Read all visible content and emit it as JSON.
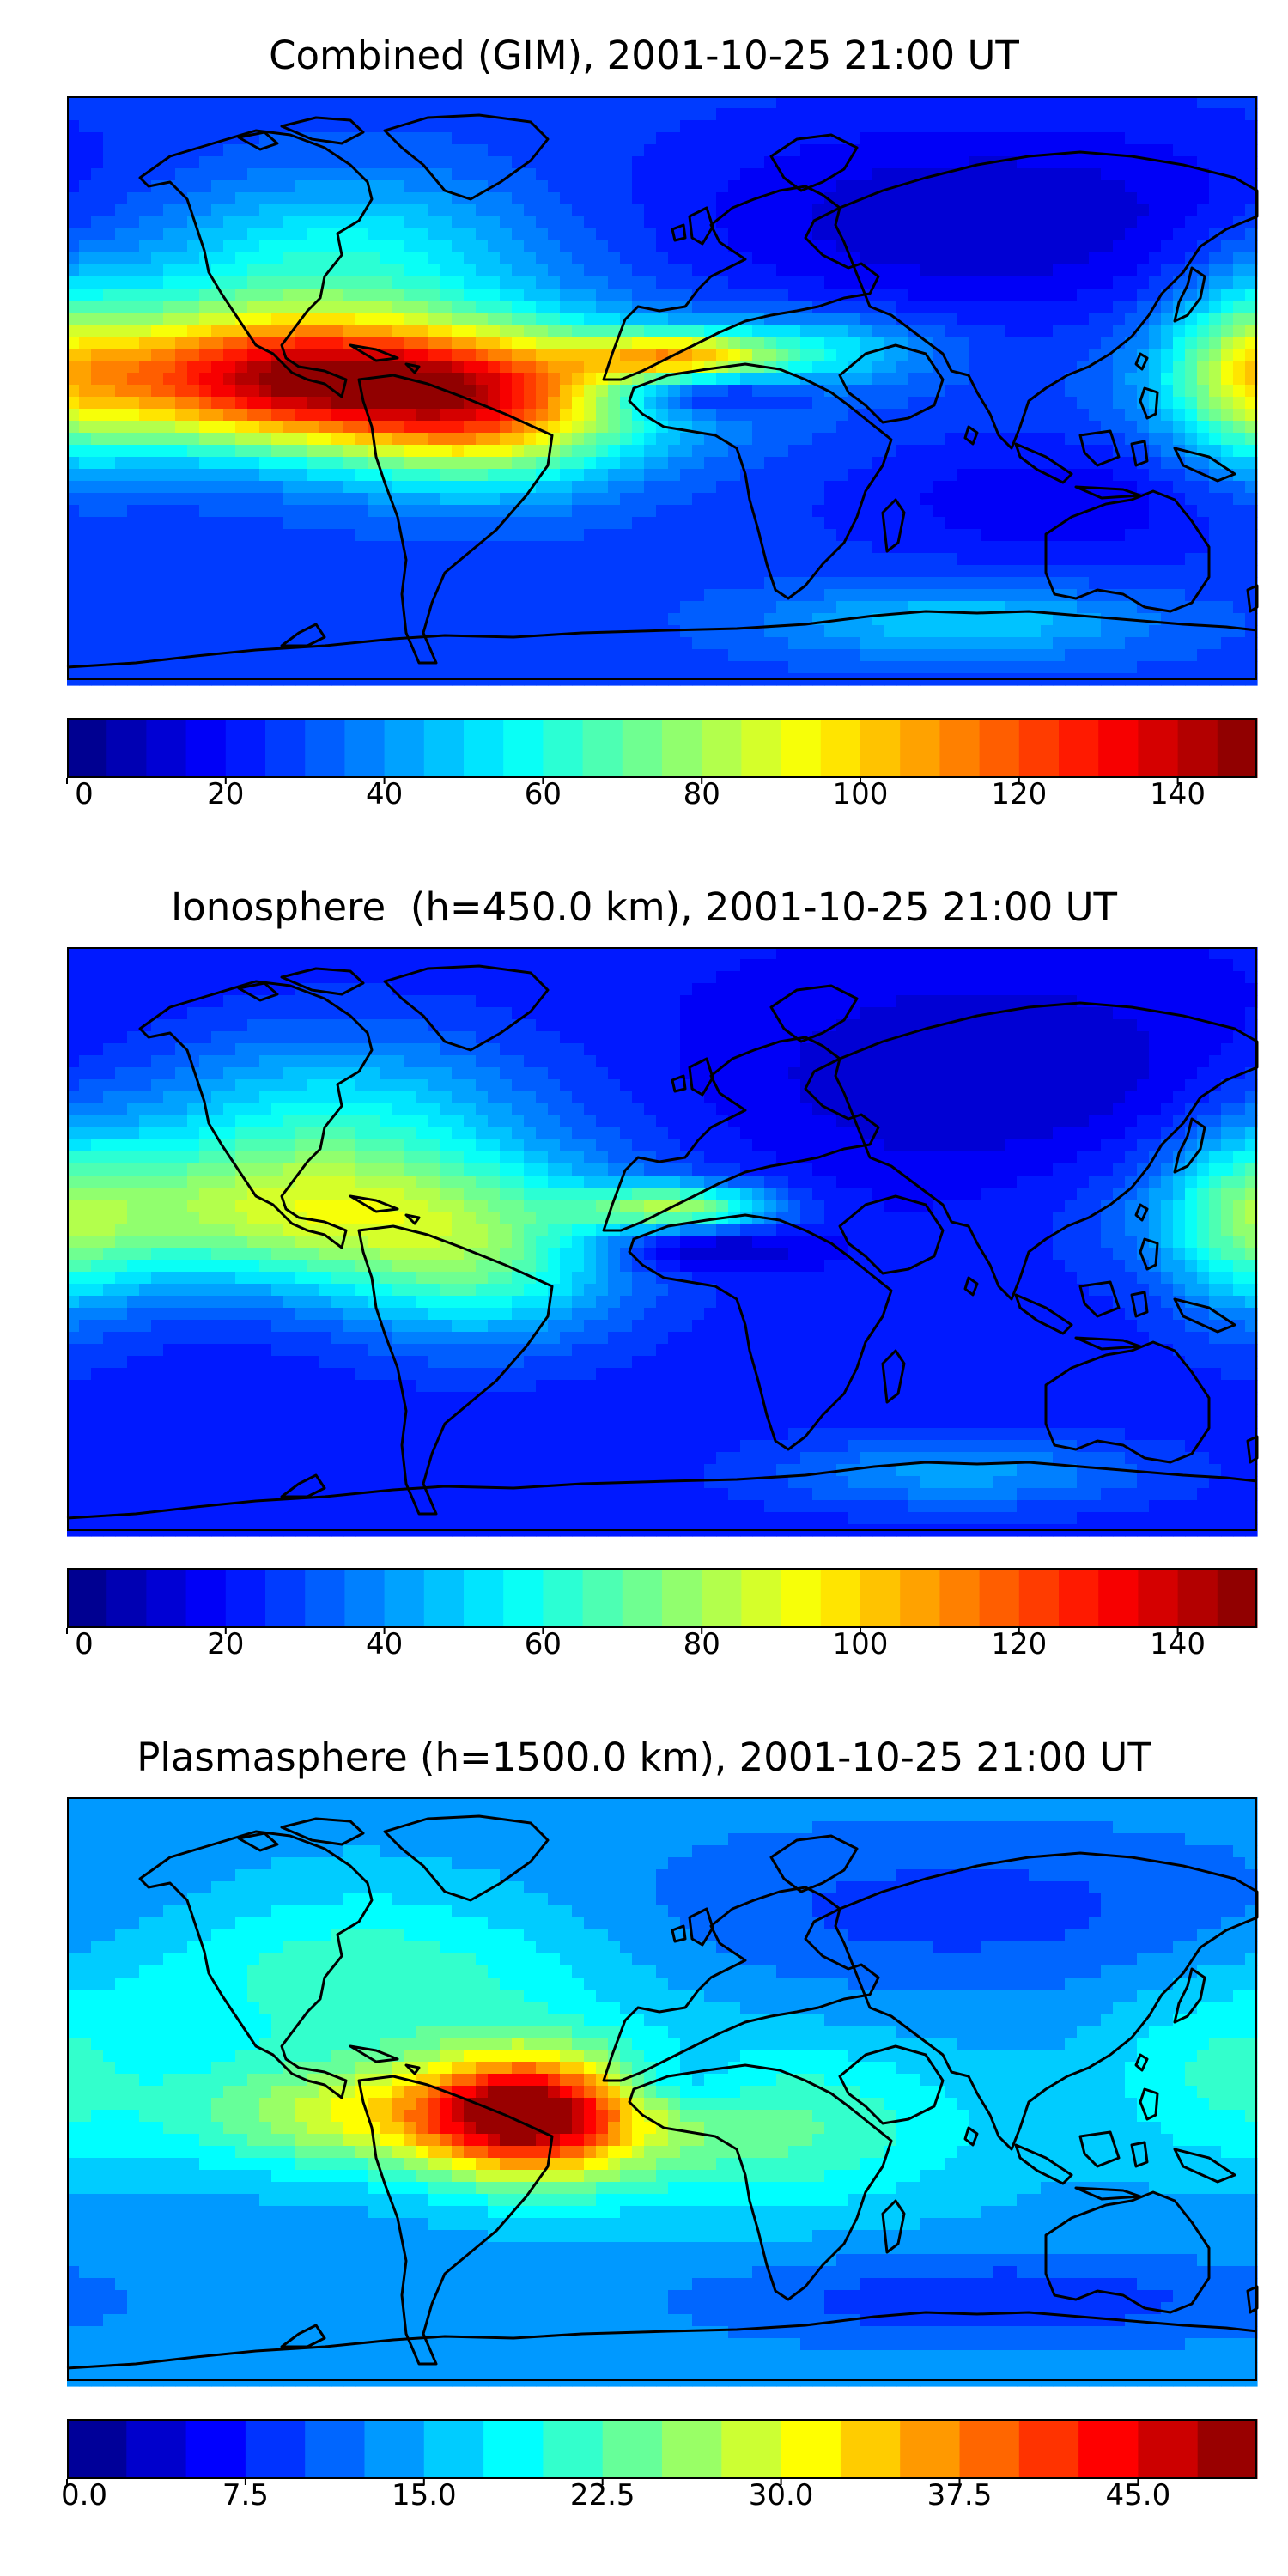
{
  "panels": [
    {
      "title": "Combined (GIM), 2001-10-25 21:00 UT",
      "colorbar": {
        "min": 0,
        "max": 150,
        "levels": 30,
        "ticks": [
          0,
          20,
          40,
          60,
          80,
          100,
          120,
          140
        ],
        "tick_labels": [
          "0",
          "20",
          "40",
          "60",
          "80",
          "100",
          "120",
          "140"
        ]
      },
      "field": {
        "base": 28,
        "blobs": [
          {
            "lon": -78,
            "lat": 2,
            "amp": 92,
            "slon": 55,
            "slat": 14
          },
          {
            "lon": -135,
            "lat": 4,
            "amp": 48,
            "slon": 40,
            "slat": 16
          },
          {
            "lon": -55,
            "lat": -14,
            "amp": 40,
            "slon": 30,
            "slat": 14
          },
          {
            "lon": 5,
            "lat": 10,
            "amp": 52,
            "slon": 20,
            "slat": 5
          },
          {
            "lon": 48,
            "lat": 12,
            "amp": 24,
            "slon": 25,
            "slat": 8
          },
          {
            "lon": 10,
            "lat": -2,
            "amp": -28,
            "slon": 22,
            "slat": 5
          },
          {
            "lon": -100,
            "lat": 40,
            "amp": 30,
            "slon": 45,
            "slat": 18
          },
          {
            "lon": 100,
            "lat": 52,
            "amp": -18,
            "slon": 70,
            "slat": 22
          },
          {
            "lon": 178,
            "lat": 5,
            "amp": 35,
            "slon": 18,
            "slat": 22
          },
          {
            "lon": 120,
            "lat": -35,
            "amp": -12,
            "slon": 45,
            "slat": 14
          },
          {
            "lon": 90,
            "lat": -72,
            "amp": 22,
            "slon": 40,
            "slat": 8
          }
        ]
      }
    },
    {
      "title": "Ionosphere  (h=450.0 km), 2001-10-25 21:00 UT",
      "colorbar": {
        "min": 0,
        "max": 150,
        "levels": 30,
        "ticks": [
          0,
          20,
          40,
          60,
          80,
          100,
          120,
          140
        ],
        "tick_labels": [
          "0",
          "20",
          "40",
          "60",
          "80",
          "100",
          "120",
          "140"
        ]
      },
      "field": {
        "base": 22,
        "blobs": [
          {
            "lon": -110,
            "lat": 8,
            "amp": 60,
            "slon": 60,
            "slat": 16
          },
          {
            "lon": -55,
            "lat": -12,
            "amp": 30,
            "slon": 30,
            "slat": 16
          },
          {
            "lon": 5,
            "lat": 10,
            "amp": 48,
            "slon": 20,
            "slat": 5
          },
          {
            "lon": 10,
            "lat": -3,
            "amp": -20,
            "slon": 22,
            "slat": 5
          },
          {
            "lon": -100,
            "lat": 40,
            "amp": 28,
            "slon": 45,
            "slat": 18
          },
          {
            "lon": 100,
            "lat": 50,
            "amp": -12,
            "slon": 60,
            "slat": 25
          },
          {
            "lon": 178,
            "lat": 5,
            "amp": 30,
            "slon": 18,
            "slat": 22
          },
          {
            "lon": 90,
            "lat": -72,
            "amp": 20,
            "slon": 40,
            "slat": 8
          }
        ]
      }
    },
    {
      "title": "Plasmasphere (h=1500.0 km), 2001-10-25 21:00 UT",
      "colorbar": {
        "min": 0,
        "max": 50,
        "levels": 20,
        "ticks": [
          0,
          7.5,
          15,
          22.5,
          30,
          37.5,
          45
        ],
        "tick_labels": [
          "0.0",
          "7.5",
          "15.0",
          "22.5",
          "30.0",
          "37.5",
          "45.0"
        ]
      },
      "field": {
        "base": 14,
        "blobs": [
          {
            "lon": -40,
            "lat": -8,
            "amp": 26,
            "slon": 22,
            "slat": 14
          },
          {
            "lon": -80,
            "lat": -8,
            "amp": 16,
            "slon": 45,
            "slat": 12
          },
          {
            "lon": 30,
            "lat": -12,
            "amp": 9,
            "slon": 45,
            "slat": 18
          },
          {
            "lon": 5,
            "lat": 2,
            "amp": -6,
            "slon": 15,
            "slat": 7
          },
          {
            "lon": -90,
            "lat": 35,
            "amp": 8,
            "slon": 55,
            "slat": 20
          },
          {
            "lon": 100,
            "lat": -65,
            "amp": -6,
            "slon": 60,
            "slat": 10
          },
          {
            "lon": 90,
            "lat": 55,
            "amp": -5,
            "slon": 80,
            "slat": 18
          },
          {
            "lon": 170,
            "lat": 5,
            "amp": 6,
            "slon": 25,
            "slat": 20
          }
        ]
      }
    }
  ],
  "colormap": "jet"
}
